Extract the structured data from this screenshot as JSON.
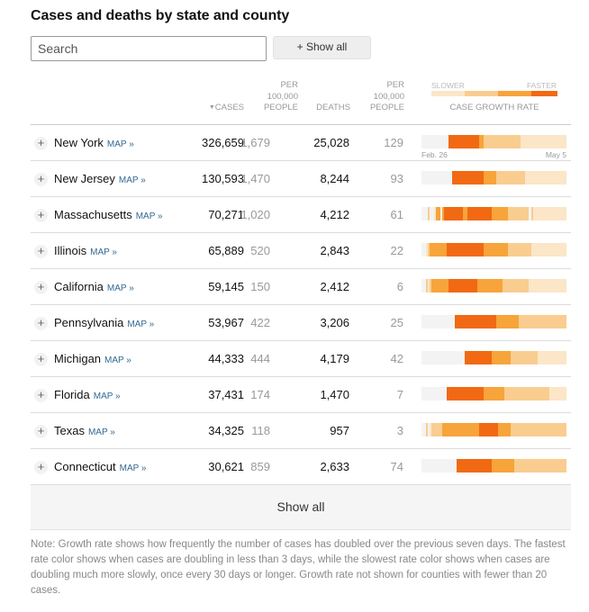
{
  "title": "Cases and deaths by state and county",
  "search": {
    "placeholder": "Search"
  },
  "show_all_top": "+ Show all",
  "headers": {
    "cases_sort_arrow": "▼",
    "cases": "CASES",
    "cases_per_1": "PER",
    "cases_per_2": "100,000",
    "cases_per_3": "PEOPLE",
    "deaths": "DEATHS",
    "deaths_per_1": "PER",
    "deaths_per_2": "100,000",
    "deaths_per_3": "PEOPLE",
    "slower": "SLOWER",
    "faster": "FASTER",
    "growth_rate": "CASE GROWTH RATE"
  },
  "legend_colors": [
    "#fbe6c8",
    "#f9cd8f",
    "#f7a43a",
    "#f16913"
  ],
  "sparkline_colors": {
    "none": "#f3f3f3",
    "slowest": "#fbe6c8",
    "slow": "#f9cd8f",
    "fast": "#f7a43a",
    "fastest": "#f16913"
  },
  "date_start": "Feb. 26",
  "date_end": "May 5",
  "plus_symbol": "+",
  "map_label": "MAP »",
  "rows": [
    {
      "name": "New York",
      "cases": "326,659",
      "cases_per_100k": "1,679",
      "deaths": "25,028",
      "deaths_per_100k": "129",
      "growth": "0000000000000444444444444444332222222222222222221111111111111111111111"
    },
    {
      "name": "New Jersey",
      "cases": "130,593",
      "cases_per_100k": "1,470",
      "deaths": "8,244",
      "deaths_per_100k": "93",
      "growth": "0000000000000004444444444444443333332222222222222211111111111111111111"
    },
    {
      "name": "Massachusetts",
      "cases": "70,271",
      "cases_per_100k": "1,020",
      "deaths": "4,212",
      "deaths_per_100k": "61",
      "growth": "0002001330344444444433444444444444333333332222222222021111111111111111"
    },
    {
      "name": "Illinois",
      "cases": "65,889",
      "cases_per_100k": "520",
      "deaths": "2,843",
      "deaths_per_100k": "22",
      "growth": "0012333333334444444444444444443333333333332222222222211111111111111111"
    },
    {
      "name": "California",
      "cases": "59,145",
      "cases_per_100k": "150",
      "deaths": "2,412",
      "deaths_per_100k": "6",
      "growth": "0021233333333444444444444443333333333332222222222222111111111111111111"
    },
    {
      "name": "Pennsylvania",
      "cases": "53,967",
      "cases_per_100k": "422",
      "deaths": "3,206",
      "deaths_per_100k": "25",
      "growth": "0000000000000000444444444444444444443333333333322222222222222222222222"
    },
    {
      "name": "Michigan",
      "cases": "44,333",
      "cases_per_100k": "444",
      "deaths": "4,179",
      "deaths_per_100k": "42",
      "growth": "0000000000000000000004444444444444333333333222222222222211111111111111"
    },
    {
      "name": "Florida",
      "cases": "37,431",
      "cases_per_100k": "174",
      "deaths": "1,470",
      "deaths_per_100k": "7",
      "growth": "0000000000004444444444444444443333333333222222222222222222222211111111"
    },
    {
      "name": "Texas",
      "cases": "34,325",
      "cases_per_100k": "118",
      "deaths": "957",
      "deaths_per_100k": "3",
      "growth": "0020122222333333333333333333444444444333333222222222222222222222222222"
    },
    {
      "name": "Connecticut",
      "cases": "30,621",
      "cases_per_100k": "859",
      "deaths": "2,633",
      "deaths_per_100k": "74",
      "growth": "0000000000000000044444444444444444333333333332222222222222222222222222"
    }
  ],
  "show_all_bottom": "Show all",
  "note": "Note: Growth rate shows how frequently the number of cases has doubled over the previous seven days. The fastest rate color shows when cases are doubling in less than 3 days, while the slowest rate color shows when cases are doubling much more slowly, once every 30 days or longer. Growth rate not shown for counties with fewer than 20 cases."
}
